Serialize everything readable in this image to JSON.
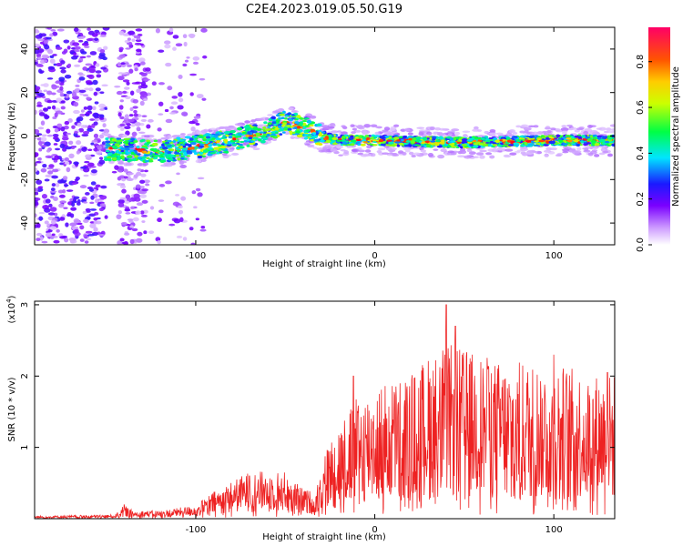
{
  "figure": {
    "title": "C2E4.2023.019.05.50.G19"
  },
  "chart_data": [
    {
      "type": "heatmap",
      "title": "C2E4.2023.019.05.50.G19",
      "xlabel": "Height of straight line (km)",
      "ylabel": "Frequency (Hz)",
      "xlim": [
        -190,
        134
      ],
      "ylim": [
        -50,
        50
      ],
      "x_ticks": [
        -100,
        0,
        100
      ],
      "x_tick_labels": [
        "-100",
        "0",
        "100"
      ],
      "y_ticks": [
        -40,
        -20,
        0,
        20,
        40
      ],
      "y_tick_labels": [
        "-40",
        "-20",
        "0",
        "20",
        "40"
      ],
      "colorbar": {
        "label": "Normalized spectral amplitude",
        "range": [
          0,
          0.95
        ],
        "ticks": [
          0,
          0.2,
          0.4,
          0.6,
          0.8
        ],
        "tick_labels": [
          "0.0",
          "0.2",
          "0.4",
          "0.6",
          "0.8"
        ],
        "colors": [
          "#ffffff",
          "#7a00ff",
          "#0033ff",
          "#00e5ff",
          "#00ff00",
          "#ffff00",
          "#ff8800",
          "#ff0000",
          "#ff0066"
        ]
      },
      "ridge": {
        "description_points_x": [
          -150,
          -120,
          -100,
          -80,
          -60,
          -50,
          -40,
          -30,
          -20,
          0,
          50,
          100,
          134
        ],
        "description_points_y": [
          -6,
          -7,
          -5,
          -2,
          2,
          7,
          4,
          0,
          -2,
          -2,
          -3,
          -2,
          -2
        ]
      },
      "grid": false
    },
    {
      "type": "line",
      "xlabel": "Height of straight line (km)",
      "ylabel": "SNR (10 * v/v)",
      "y_scale_label": "(x10",
      "y_scale_exp": "4",
      "y_scale_suffix": ")",
      "xlim": [
        -190,
        134
      ],
      "ylim": [
        0,
        3.05
      ],
      "x_ticks": [
        -100,
        0,
        100
      ],
      "x_tick_labels": [
        "-100",
        "0",
        "100"
      ],
      "y_ticks": [
        1,
        2,
        3
      ],
      "y_tick_labels": [
        "1",
        "2",
        "3"
      ],
      "series": [
        {
          "color": "#ee2222",
          "envelope_x": [
            -190,
            -145,
            -140,
            -135,
            -120,
            -100,
            -90,
            -70,
            -50,
            -40,
            -33,
            -28,
            -20,
            -10,
            0,
            10,
            20,
            30,
            40,
            50,
            60,
            70,
            80,
            90,
            100,
            110,
            120,
            134
          ],
          "envelope_y": [
            0.02,
            0.03,
            0.1,
            0.06,
            0.06,
            0.1,
            0.2,
            0.35,
            0.35,
            0.22,
            0.2,
            0.55,
            0.8,
            1.0,
            1.1,
            1.15,
            1.2,
            1.35,
            1.45,
            1.4,
            1.35,
            1.3,
            1.3,
            1.3,
            1.3,
            1.25,
            1.2,
            1.2
          ],
          "peaks": [
            [
              -140,
              0.2
            ],
            [
              -70,
              0.6
            ],
            [
              -12,
              2.0
            ],
            [
              40,
              3.0
            ],
            [
              45,
              2.7
            ],
            [
              63,
              2.1
            ],
            [
              100,
              2.3
            ],
            [
              130,
              2.05
            ]
          ]
        }
      ],
      "grid": false
    }
  ]
}
